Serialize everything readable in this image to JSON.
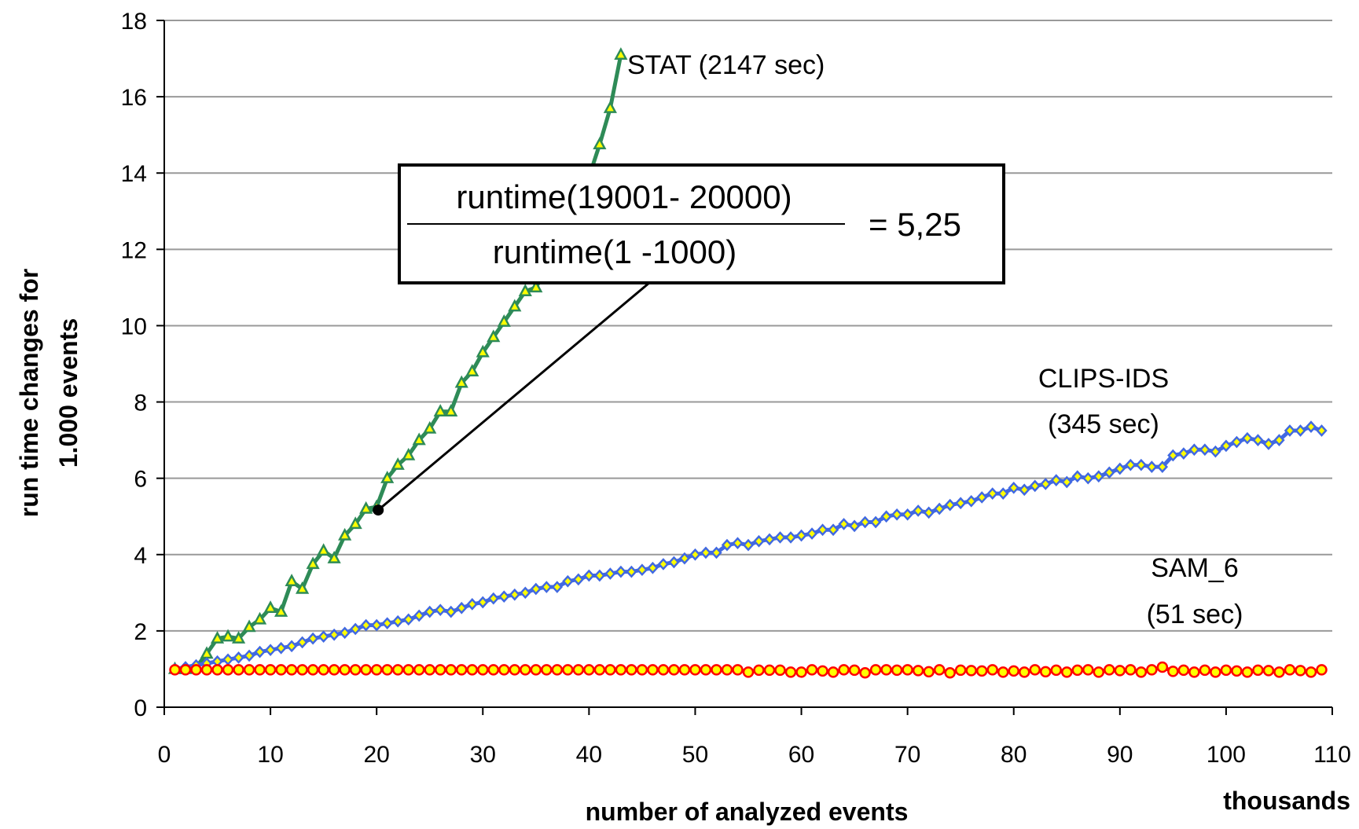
{
  "chart_data": {
    "type": "line",
    "title": "",
    "xlabel": "number of analyzed events",
    "xunit": "thousands",
    "ylabel_lines": [
      "run time changes for",
      "1.000 events"
    ],
    "xlim": [
      0,
      110
    ],
    "ylim": [
      0,
      18
    ],
    "xticks": [
      0,
      10,
      20,
      30,
      40,
      50,
      60,
      70,
      80,
      90,
      100,
      110
    ],
    "yticks": [
      0,
      2,
      4,
      6,
      8,
      10,
      12,
      14,
      16,
      18
    ],
    "grid": "horizontal",
    "legend": "none",
    "series": [
      {
        "key": "stat",
        "color": "#2e8b57",
        "marker_fill": "#ffff00",
        "marker": "triangle",
        "points": [
          [
            1,
            1
          ],
          [
            2,
            1
          ],
          [
            3,
            1.05
          ],
          [
            4,
            1.4
          ],
          [
            5,
            1.8
          ],
          [
            6,
            1.85
          ],
          [
            7,
            1.8
          ],
          [
            8,
            2.1
          ],
          [
            9,
            2.3
          ],
          [
            10,
            2.6
          ],
          [
            11,
            2.5
          ],
          [
            12,
            3.3
          ],
          [
            13,
            3.1
          ],
          [
            14,
            3.75
          ],
          [
            15,
            4.1
          ],
          [
            16,
            3.9
          ],
          [
            17,
            4.5
          ],
          [
            18,
            4.8
          ],
          [
            19,
            5.2
          ],
          [
            20,
            5.25
          ],
          [
            21,
            6.0
          ],
          [
            22,
            6.35
          ],
          [
            23,
            6.6
          ],
          [
            24,
            7.0
          ],
          [
            25,
            7.3
          ],
          [
            26,
            7.75
          ],
          [
            27,
            7.75
          ],
          [
            28,
            8.5
          ],
          [
            29,
            8.8
          ],
          [
            30,
            9.3
          ],
          [
            31,
            9.7
          ],
          [
            32,
            10.1
          ],
          [
            33,
            10.5
          ],
          [
            34,
            10.9
          ],
          [
            35,
            11.0
          ],
          [
            36,
            11.5
          ],
          [
            37,
            12.0
          ],
          [
            38,
            12.6
          ],
          [
            39,
            13.3
          ],
          [
            40,
            13.9
          ],
          [
            41,
            14.75
          ],
          [
            42,
            15.7
          ],
          [
            43,
            17.1
          ]
        ]
      },
      {
        "key": "clips",
        "color": "#4169e1",
        "marker_fill": "#ffff00",
        "marker": "diamond",
        "points": [
          [
            1,
            1
          ],
          [
            2,
            1.05
          ],
          [
            3,
            1.1
          ],
          [
            4,
            1.15
          ],
          [
            5,
            1.2
          ],
          [
            6,
            1.25
          ],
          [
            7,
            1.3
          ],
          [
            8,
            1.35
          ],
          [
            9,
            1.45
          ],
          [
            10,
            1.5
          ],
          [
            11,
            1.55
          ],
          [
            12,
            1.6
          ],
          [
            13,
            1.7
          ],
          [
            14,
            1.8
          ],
          [
            15,
            1.85
          ],
          [
            16,
            1.9
          ],
          [
            17,
            1.95
          ],
          [
            18,
            2.05
          ],
          [
            19,
            2.15
          ],
          [
            20,
            2.15
          ],
          [
            21,
            2.2
          ],
          [
            22,
            2.25
          ],
          [
            23,
            2.3
          ],
          [
            24,
            2.4
          ],
          [
            25,
            2.5
          ],
          [
            26,
            2.55
          ],
          [
            27,
            2.5
          ],
          [
            28,
            2.6
          ],
          [
            29,
            2.7
          ],
          [
            30,
            2.75
          ],
          [
            31,
            2.85
          ],
          [
            32,
            2.9
          ],
          [
            33,
            2.95
          ],
          [
            34,
            3.0
          ],
          [
            35,
            3.1
          ],
          [
            36,
            3.15
          ],
          [
            37,
            3.15
          ],
          [
            38,
            3.3
          ],
          [
            39,
            3.35
          ],
          [
            40,
            3.45
          ],
          [
            41,
            3.45
          ],
          [
            42,
            3.5
          ],
          [
            43,
            3.55
          ],
          [
            44,
            3.55
          ],
          [
            45,
            3.6
          ],
          [
            46,
            3.65
          ],
          [
            47,
            3.75
          ],
          [
            48,
            3.8
          ],
          [
            49,
            3.9
          ],
          [
            50,
            4.0
          ],
          [
            51,
            4.05
          ],
          [
            52,
            4.05
          ],
          [
            53,
            4.25
          ],
          [
            54,
            4.3
          ],
          [
            55,
            4.25
          ],
          [
            56,
            4.35
          ],
          [
            57,
            4.4
          ],
          [
            58,
            4.45
          ],
          [
            59,
            4.45
          ],
          [
            60,
            4.5
          ],
          [
            61,
            4.55
          ],
          [
            62,
            4.65
          ],
          [
            63,
            4.65
          ],
          [
            64,
            4.8
          ],
          [
            65,
            4.75
          ],
          [
            66,
            4.85
          ],
          [
            67,
            4.85
          ],
          [
            68,
            5.0
          ],
          [
            69,
            5.05
          ],
          [
            70,
            5.05
          ],
          [
            71,
            5.15
          ],
          [
            72,
            5.1
          ],
          [
            73,
            5.2
          ],
          [
            74,
            5.3
          ],
          [
            75,
            5.35
          ],
          [
            76,
            5.4
          ],
          [
            77,
            5.5
          ],
          [
            78,
            5.6
          ],
          [
            79,
            5.6
          ],
          [
            80,
            5.75
          ],
          [
            81,
            5.7
          ],
          [
            82,
            5.8
          ],
          [
            83,
            5.85
          ],
          [
            84,
            5.95
          ],
          [
            85,
            5.9
          ],
          [
            86,
            6.05
          ],
          [
            87,
            6.0
          ],
          [
            88,
            6.05
          ],
          [
            89,
            6.15
          ],
          [
            90,
            6.25
          ],
          [
            91,
            6.35
          ],
          [
            92,
            6.35
          ],
          [
            93,
            6.3
          ],
          [
            94,
            6.3
          ],
          [
            95,
            6.6
          ],
          [
            96,
            6.65
          ],
          [
            97,
            6.75
          ],
          [
            98,
            6.75
          ],
          [
            99,
            6.7
          ],
          [
            100,
            6.85
          ],
          [
            101,
            6.95
          ],
          [
            102,
            7.05
          ],
          [
            103,
            7.0
          ],
          [
            104,
            6.9
          ],
          [
            105,
            7.0
          ],
          [
            106,
            7.25
          ],
          [
            107,
            7.25
          ],
          [
            108,
            7.35
          ],
          [
            109,
            7.25
          ]
        ]
      },
      {
        "key": "sam",
        "color": "#ff0000",
        "marker_fill": "#ffff00",
        "marker": "circle",
        "points": [
          [
            1,
            0.98
          ],
          [
            2,
            0.98
          ],
          [
            3,
            0.98
          ],
          [
            4,
            0.98
          ],
          [
            5,
            0.98
          ],
          [
            6,
            0.98
          ],
          [
            7,
            0.98
          ],
          [
            8,
            0.98
          ],
          [
            9,
            0.98
          ],
          [
            10,
            0.98
          ],
          [
            11,
            0.98
          ],
          [
            12,
            0.98
          ],
          [
            13,
            0.98
          ],
          [
            14,
            0.98
          ],
          [
            15,
            0.98
          ],
          [
            16,
            0.98
          ],
          [
            17,
            0.98
          ],
          [
            18,
            0.98
          ],
          [
            19,
            0.98
          ],
          [
            20,
            0.98
          ],
          [
            21,
            0.98
          ],
          [
            22,
            0.98
          ],
          [
            23,
            0.98
          ],
          [
            24,
            0.98
          ],
          [
            25,
            0.98
          ],
          [
            26,
            0.98
          ],
          [
            27,
            0.98
          ],
          [
            28,
            0.98
          ],
          [
            29,
            0.98
          ],
          [
            30,
            0.98
          ],
          [
            31,
            0.98
          ],
          [
            32,
            0.98
          ],
          [
            33,
            0.98
          ],
          [
            34,
            0.98
          ],
          [
            35,
            0.98
          ],
          [
            36,
            0.98
          ],
          [
            37,
            0.98
          ],
          [
            38,
            0.98
          ],
          [
            39,
            0.98
          ],
          [
            40,
            0.98
          ],
          [
            41,
            0.98
          ],
          [
            42,
            0.98
          ],
          [
            43,
            0.98
          ],
          [
            44,
            0.98
          ],
          [
            45,
            0.98
          ],
          [
            46,
            0.98
          ],
          [
            47,
            0.98
          ],
          [
            48,
            0.98
          ],
          [
            49,
            0.98
          ],
          [
            50,
            0.98
          ],
          [
            51,
            0.98
          ],
          [
            52,
            0.98
          ],
          [
            53,
            0.98
          ],
          [
            54,
            0.98
          ],
          [
            55,
            0.92
          ],
          [
            56,
            0.97
          ],
          [
            57,
            0.97
          ],
          [
            58,
            0.97
          ],
          [
            59,
            0.92
          ],
          [
            60,
            0.92
          ],
          [
            61,
            0.98
          ],
          [
            62,
            0.95
          ],
          [
            63,
            0.92
          ],
          [
            64,
            0.98
          ],
          [
            65,
            0.97
          ],
          [
            66,
            0.9
          ],
          [
            67,
            0.98
          ],
          [
            68,
            0.98
          ],
          [
            69,
            0.97
          ],
          [
            70,
            0.98
          ],
          [
            71,
            0.96
          ],
          [
            72,
            0.93
          ],
          [
            73,
            0.98
          ],
          [
            74,
            0.9
          ],
          [
            75,
            0.97
          ],
          [
            76,
            0.96
          ],
          [
            77,
            0.95
          ],
          [
            78,
            0.98
          ],
          [
            79,
            0.92
          ],
          [
            80,
            0.95
          ],
          [
            81,
            0.92
          ],
          [
            82,
            0.98
          ],
          [
            83,
            0.93
          ],
          [
            84,
            0.97
          ],
          [
            85,
            0.92
          ],
          [
            86,
            0.97
          ],
          [
            87,
            0.98
          ],
          [
            88,
            0.92
          ],
          [
            89,
            0.98
          ],
          [
            90,
            0.96
          ],
          [
            91,
            0.98
          ],
          [
            92,
            0.92
          ],
          [
            93,
            0.98
          ],
          [
            94,
            1.05
          ],
          [
            95,
            0.94
          ],
          [
            96,
            0.97
          ],
          [
            97,
            0.92
          ],
          [
            98,
            0.97
          ],
          [
            99,
            0.92
          ],
          [
            100,
            0.97
          ],
          [
            101,
            0.95
          ],
          [
            102,
            0.92
          ],
          [
            103,
            0.97
          ],
          [
            104,
            0.96
          ],
          [
            105,
            0.92
          ],
          [
            106,
            0.98
          ],
          [
            107,
            0.96
          ],
          [
            108,
            0.92
          ],
          [
            109,
            0.98
          ]
        ]
      }
    ],
    "annotations": {
      "stat_label": "STAT (2147 sec)",
      "clips_label_1": "CLIPS-IDS",
      "clips_label_2": "(345 sec)",
      "sam_label_1": "SAM_6",
      "sam_label_2": "(51 sec)",
      "formula_numerator": "runtime(19001- 20000)",
      "formula_denominator": "runtime(1 -1000)",
      "formula_result": "= 5,25",
      "callout_point": [
        20,
        5.25
      ]
    }
  }
}
